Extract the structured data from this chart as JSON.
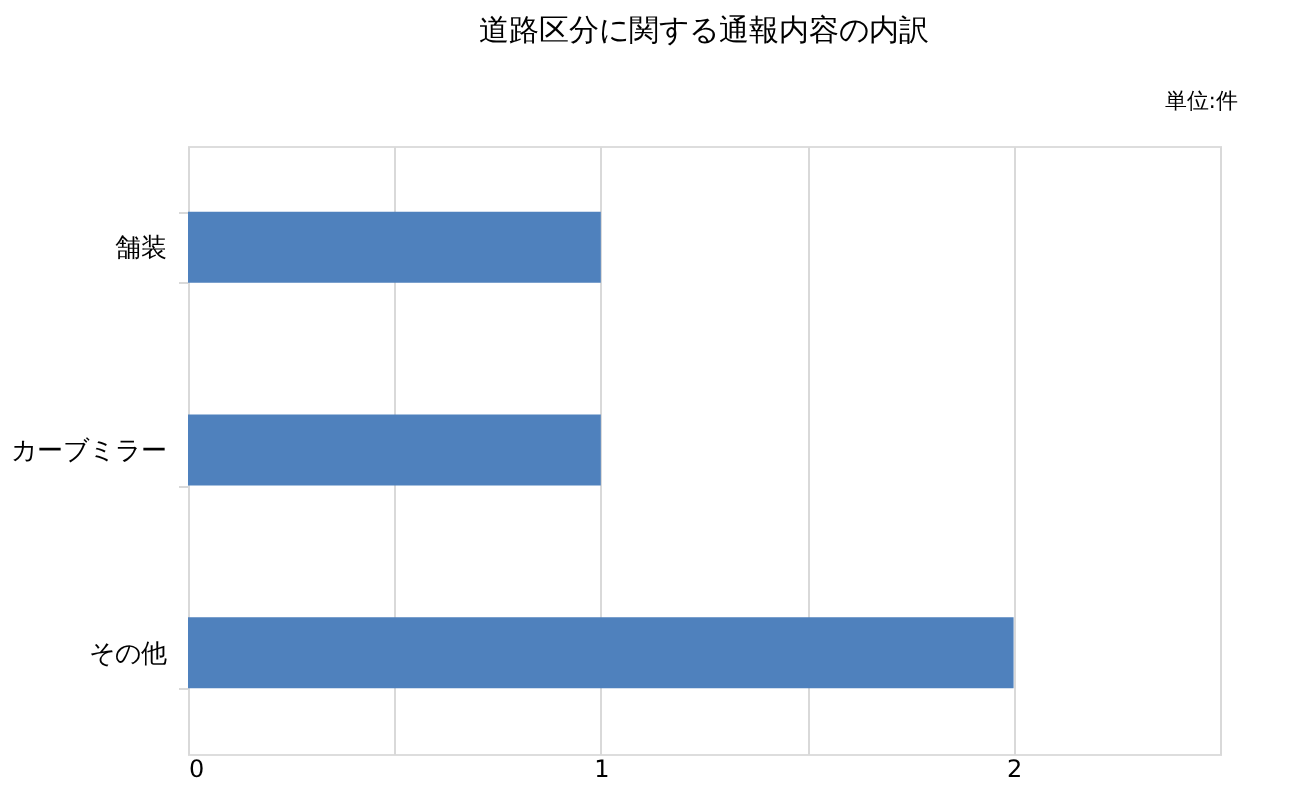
{
  "chart_data": {
    "type": "bar",
    "orientation": "horizontal",
    "title": "道路区分に関する通報内容の内訳",
    "categories": [
      "舗装",
      "カーブミラー",
      "その他"
    ],
    "series": [
      {
        "color": "#4f81bd",
        "values": [
          1,
          1,
          2
        ]
      }
    ],
    "xlim": [
      0,
      2.5
    ],
    "xticks": [
      0,
      {
        "value": 0.5,
        "label": null
      },
      1,
      {
        "value": 1.5,
        "label": null
      },
      2,
      {
        "value": 2.5,
        "label": null
      }
    ],
    "grid": "x",
    "legend": false,
    "annotations": [
      "単位:件"
    ]
  }
}
